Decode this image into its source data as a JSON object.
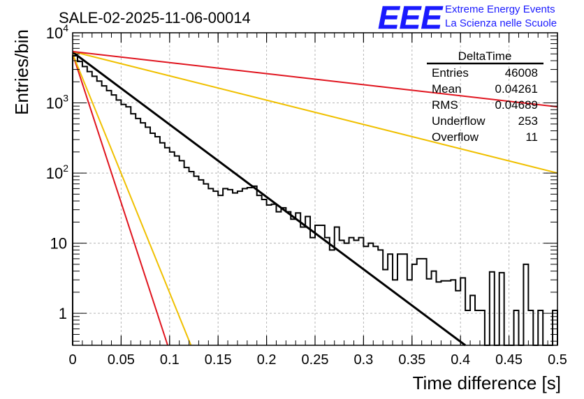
{
  "chart_data": {
    "type": "histogram",
    "title": "SALE-02-2025-11-06-00014",
    "xlabel": "Time difference [s]",
    "ylabel": "Entries/bin",
    "xlim": [
      0,
      0.5
    ],
    "ylim": [
      0.35,
      10000
    ],
    "yscale": "log",
    "grid": true,
    "x_ticks": [
      {
        "value": 0,
        "label": "0"
      },
      {
        "value": 0.05,
        "label": "0.05"
      },
      {
        "value": 0.1,
        "label": "0.1"
      },
      {
        "value": 0.15,
        "label": "0.15"
      },
      {
        "value": 0.2,
        "label": "0.2"
      },
      {
        "value": 0.25,
        "label": "0.25"
      },
      {
        "value": 0.3,
        "label": "0.3"
      },
      {
        "value": 0.35,
        "label": "0.35"
      },
      {
        "value": 0.4,
        "label": "0.4"
      },
      {
        "value": 0.45,
        "label": "0.45"
      },
      {
        "value": 0.5,
        "label": "0.5"
      }
    ],
    "y_ticks": [
      {
        "value": 1,
        "label": "1"
      },
      {
        "value": 10,
        "label": "10"
      },
      {
        "value": 100,
        "label": "10",
        "exp": "2"
      },
      {
        "value": 1000,
        "label": "10",
        "exp": "3"
      },
      {
        "value": 10000,
        "label": "10",
        "exp": "4"
      }
    ],
    "histogram": {
      "name": "DeltaTime",
      "color": "#000000",
      "bin_width": 0.005,
      "x_start": 0,
      "counts": [
        4700,
        3900,
        3300,
        2800,
        2400,
        2050,
        1750,
        1500,
        1300,
        1100,
        950,
        880,
        700,
        600,
        520,
        450,
        370,
        330,
        270,
        230,
        200,
        175,
        150,
        120,
        105,
        90,
        80,
        70,
        60,
        55,
        48,
        60,
        58,
        52,
        55,
        60,
        62,
        65,
        48,
        42,
        35,
        36,
        28,
        32,
        28,
        22,
        27,
        17,
        24,
        12,
        18,
        18,
        12,
        8,
        17,
        11,
        10,
        12,
        11,
        12,
        9,
        10,
        9,
        8,
        4.2,
        7,
        3,
        7,
        7,
        3,
        5,
        6,
        6,
        3.1,
        4,
        2.8,
        2.9,
        2.9,
        3,
        2.1,
        3.2,
        1.1,
        1.8,
        1.1,
        1.1,
        0.3,
        3.9,
        0.3,
        3.8,
        0.3,
        0.3,
        1.1,
        0.3,
        5,
        1.1,
        0.3,
        1.1,
        0.3,
        0.3,
        1.1
      ]
    },
    "curves": [
      {
        "name": "exponential-fit",
        "color": "#000000",
        "y0": 5300,
        "x_end": 0.405,
        "y_end": 0.35
      },
      {
        "name": "rate-bound-red-steep",
        "color": "#e0141e",
        "y0": 5000,
        "x_end": 0.098,
        "y_end": 0.35
      },
      {
        "name": "rate-bound-yellow-steep",
        "color": "#f0c000",
        "y0": 5000,
        "x_end": 0.122,
        "y_end": 0.35
      },
      {
        "name": "rate-bound-yellow-shallow",
        "color": "#f0c000",
        "y0": 5400,
        "x_end": 0.5,
        "y_end": 100
      },
      {
        "name": "rate-bound-red-shallow",
        "color": "#e0141e",
        "y0": 5400,
        "x_end": 0.5,
        "y_end": 880
      }
    ],
    "stats_box": {
      "title": "DeltaTime",
      "rows": [
        {
          "label": "Entries",
          "value": "46008"
        },
        {
          "label": "Mean",
          "value": "0.04261"
        },
        {
          "label": "RMS",
          "value": "0.04689"
        },
        {
          "label": "Underflow",
          "value": "253"
        },
        {
          "label": "Overflow",
          "value": "11"
        }
      ],
      "placement": "top-right"
    }
  },
  "logo": {
    "text": "EEE",
    "line1": "Extreme Energy Events",
    "line2": "La Scienza nelle Scuole",
    "color": "#1a1aff"
  }
}
